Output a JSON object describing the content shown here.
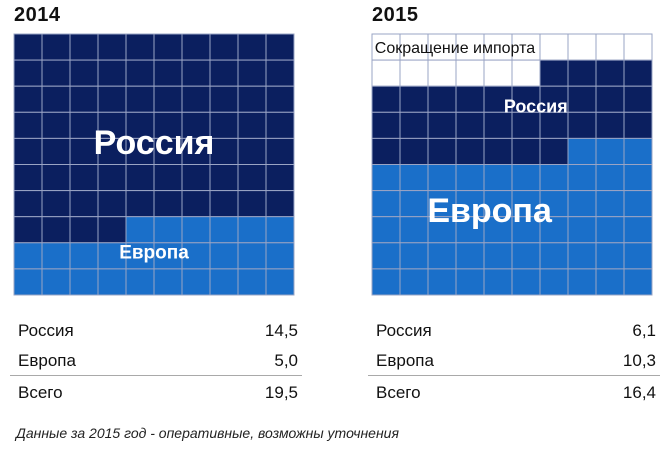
{
  "chart_data": [
    {
      "type": "waffle",
      "title": "2014",
      "series": [
        {
          "name": "Россия",
          "value": 14.5,
          "color": "#0b1f5f"
        },
        {
          "name": "Европа",
          "value": 5.0,
          "color": "#1a6fc9"
        }
      ],
      "annotations": [
        "Россия",
        "Европа"
      ],
      "table": [
        {
          "label": "Россия",
          "value": "14,5"
        },
        {
          "label": "Европа",
          "value": "5,0"
        },
        {
          "label": "Всего",
          "value": "19,5"
        }
      ]
    },
    {
      "type": "waffle",
      "title": "2015",
      "series": [
        {
          "name": "Сокращение импорта",
          "value": 3.1,
          "color": "#ffffff"
        },
        {
          "name": "Россия",
          "value": 6.1,
          "color": "#0b1f5f"
        },
        {
          "name": "Европа",
          "value": 10.3,
          "color": "#1a6fc9"
        }
      ],
      "annotations": [
        "Сокращение импорта",
        "Россия",
        "Европа"
      ],
      "table": [
        {
          "label": "Россия",
          "value": "6,1"
        },
        {
          "label": "Европа",
          "value": "10,3"
        },
        {
          "label": "Всего",
          "value": "16,4"
        }
      ]
    }
  ],
  "footnote": "Данные за 2015 год - оперативные, возможны уточнения",
  "colors": {
    "russia": "#0b1f5f",
    "europe": "#1a6fc9",
    "reduction": "#ffffff",
    "grid_line": "#9aa4c4"
  }
}
